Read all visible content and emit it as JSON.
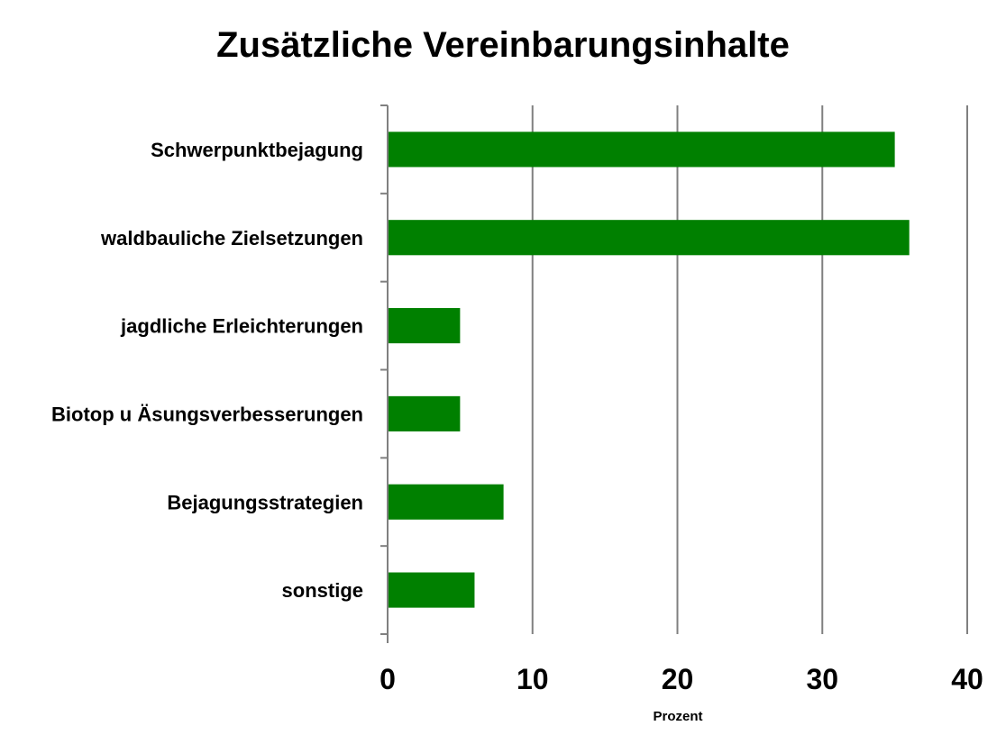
{
  "chart_data": {
    "type": "bar",
    "orientation": "horizontal",
    "title": "Zusätzliche Vereinbarungsinhalte",
    "xlabel": "Prozent",
    "ylabel": "",
    "categories": [
      "Schwerpunktbejagung",
      "waldbauliche Zielsetzungen",
      "jagdliche Erleichterungen",
      "Biotop u Äsungsverbesserungen",
      "Bejagungsstrategien",
      "sonstige"
    ],
    "values": [
      35,
      36,
      5,
      5,
      8,
      6
    ],
    "xlim": [
      0,
      40
    ],
    "xticks": [
      "0",
      "10",
      "20",
      "30",
      "40"
    ],
    "grid": "vertical",
    "legend": "none",
    "bar_color": "#008000",
    "grid_color": "#808080"
  }
}
